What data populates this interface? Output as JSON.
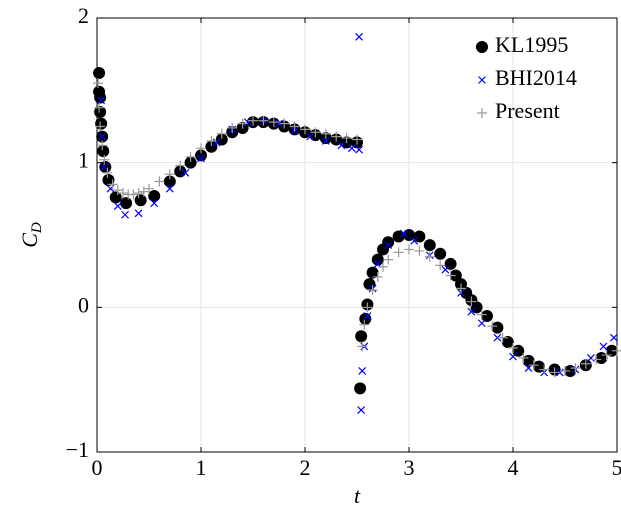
{
  "chart_data": {
    "type": "scatter",
    "xlabel": "t",
    "ylabel": {
      "text": "C",
      "subscript": "D"
    },
    "xlim": [
      0,
      5
    ],
    "ylim": [
      -1,
      2
    ],
    "xticks": [
      0,
      1,
      2,
      3,
      4,
      5
    ],
    "yticks": [
      {
        "value": -1,
        "label": "−1"
      },
      0,
      1,
      2
    ],
    "grid": true,
    "legend": "top-right",
    "series": [
      {
        "name": "KL1995",
        "color": "#000000",
        "marker": "circle",
        "x": [
          0.02,
          0.02,
          0.03,
          0.03,
          0.04,
          0.05,
          0.06,
          0.08,
          0.11,
          0.18,
          0.28,
          0.42,
          0.55,
          0.7,
          0.8,
          0.9,
          1.0,
          1.1,
          1.2,
          1.3,
          1.4,
          1.5,
          1.6,
          1.7,
          1.8,
          1.9,
          2.0,
          2.1,
          2.2,
          2.3,
          2.4,
          2.5,
          2.53,
          2.54,
          2.58,
          2.6,
          2.62,
          2.65,
          2.7,
          2.75,
          2.8,
          2.9,
          3.0,
          3.1,
          3.2,
          3.3,
          3.4,
          3.45,
          3.5,
          3.55,
          3.6,
          3.65,
          3.75,
          3.85,
          3.95,
          4.05,
          4.15,
          4.25,
          4.4,
          4.55,
          4.7,
          4.85,
          4.95
        ],
        "values": [
          1.62,
          1.49,
          1.45,
          1.35,
          1.27,
          1.18,
          1.08,
          0.97,
          0.88,
          0.76,
          0.72,
          0.74,
          0.77,
          0.87,
          0.94,
          1.0,
          1.05,
          1.11,
          1.16,
          1.21,
          1.24,
          1.28,
          1.28,
          1.27,
          1.25,
          1.23,
          1.21,
          1.19,
          1.17,
          1.16,
          1.14,
          1.14,
          -0.56,
          -0.2,
          -0.08,
          0.02,
          0.16,
          0.24,
          0.33,
          0.4,
          0.45,
          0.49,
          0.5,
          0.49,
          0.43,
          0.37,
          0.3,
          0.22,
          0.16,
          0.1,
          0.05,
          0.0,
          -0.06,
          -0.14,
          -0.24,
          -0.3,
          -0.37,
          -0.41,
          -0.43,
          -0.44,
          -0.4,
          -0.35,
          -0.3
        ]
      },
      {
        "name": "BHI2014",
        "color": "#0000ff",
        "marker": "x",
        "x": [
          0.04,
          0.05,
          0.07,
          0.13,
          0.2,
          0.27,
          0.4,
          0.55,
          0.7,
          0.85,
          1.0,
          1.15,
          1.3,
          1.45,
          1.6,
          1.75,
          1.9,
          2.05,
          2.2,
          2.35,
          2.45,
          2.52,
          2.52,
          2.54,
          2.55,
          2.57,
          2.6,
          2.65,
          2.7,
          2.8,
          2.95,
          3.05,
          3.2,
          3.35,
          3.5,
          3.6,
          3.7,
          3.85,
          4.0,
          4.15,
          4.3,
          4.45,
          4.6,
          4.75,
          4.87,
          4.97
        ],
        "values": [
          1.43,
          1.18,
          0.97,
          0.82,
          0.7,
          0.64,
          0.65,
          0.72,
          0.82,
          0.93,
          1.03,
          1.14,
          1.23,
          1.28,
          1.29,
          1.27,
          1.22,
          1.18,
          1.15,
          1.12,
          1.1,
          1.09,
          1.87,
          -0.71,
          -0.44,
          -0.27,
          -0.06,
          0.13,
          0.3,
          0.43,
          0.51,
          0.46,
          0.36,
          0.26,
          0.1,
          -0.03,
          -0.11,
          -0.21,
          -0.34,
          -0.42,
          -0.45,
          -0.45,
          -0.43,
          -0.35,
          -0.27,
          -0.21
        ]
      },
      {
        "name": "Present",
        "color": "#999999",
        "marker": "plus",
        "x": [
          0.01,
          0.02,
          0.03,
          0.05,
          0.07,
          0.1,
          0.15,
          0.2,
          0.25,
          0.3,
          0.35,
          0.4,
          0.45,
          0.5,
          0.6,
          0.7,
          0.8,
          0.9,
          1.0,
          1.1,
          1.2,
          1.3,
          1.4,
          1.5,
          1.6,
          1.7,
          1.8,
          1.9,
          2.0,
          2.1,
          2.2,
          2.3,
          2.4,
          2.5,
          2.55,
          2.57,
          2.6,
          2.65,
          2.7,
          2.75,
          2.8,
          2.9,
          3.0,
          3.1,
          3.2,
          3.3,
          3.4,
          3.5,
          3.6,
          3.7,
          3.8,
          3.9,
          4.0,
          4.1,
          4.2,
          4.3,
          4.4,
          4.5,
          4.6,
          4.7,
          4.8,
          4.9,
          5.0
        ],
        "values": [
          1.55,
          1.38,
          1.25,
          1.12,
          1.02,
          0.93,
          0.85,
          0.81,
          0.79,
          0.78,
          0.78,
          0.79,
          0.8,
          0.82,
          0.87,
          0.92,
          0.98,
          1.04,
          1.1,
          1.15,
          1.2,
          1.24,
          1.27,
          1.29,
          1.29,
          1.28,
          1.27,
          1.25,
          1.23,
          1.21,
          1.2,
          1.18,
          1.17,
          1.16,
          -0.27,
          -0.12,
          0.0,
          0.12,
          0.21,
          0.28,
          0.33,
          0.38,
          0.4,
          0.39,
          0.35,
          0.29,
          0.22,
          0.13,
          0.04,
          -0.05,
          -0.13,
          -0.21,
          -0.28,
          -0.35,
          -0.4,
          -0.43,
          -0.45,
          -0.44,
          -0.42,
          -0.39,
          -0.36,
          -0.33,
          -0.3
        ]
      }
    ]
  }
}
